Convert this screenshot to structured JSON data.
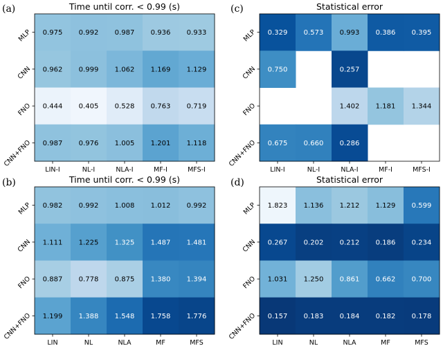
{
  "chart_data": [
    {
      "type": "heatmap",
      "letter": "(a)",
      "title": "Time until corr. < 0.99 (s)",
      "cmap": "Blues",
      "vmin": 0.35,
      "vmax": 1.9,
      "rows": [
        "MLP",
        "CNN",
        "FNO",
        "CNN+FNO"
      ],
      "columns": [
        "LIN-I",
        "NL-I",
        "NLA-I",
        "MF-I",
        "MFS-I"
      ],
      "values": [
        [
          0.975,
          0.992,
          0.987,
          0.936,
          0.933
        ],
        [
          0.962,
          0.999,
          1.062,
          1.169,
          1.129
        ],
        [
          0.444,
          0.405,
          0.528,
          0.763,
          0.719
        ],
        [
          0.987,
          0.976,
          1.005,
          1.201,
          1.118
        ]
      ]
    },
    {
      "type": "heatmap",
      "letter": "(c)",
      "title": "Statistical error",
      "cmap": "Blues",
      "vmin": 0.1,
      "vmax": 1.9,
      "rows": [
        "MLP",
        "CNN",
        "FNO",
        "CNN+FNO"
      ],
      "columns": [
        "LIN-I",
        "NL-I",
        "NLA-I",
        "MF-I",
        "MFS-I"
      ],
      "values": [
        [
          0.329,
          0.573,
          0.993,
          0.386,
          0.395
        ],
        [
          0.75,
          null,
          0.257,
          null,
          null
        ],
        [
          null,
          null,
          1.402,
          1.181,
          1.344
        ],
        [
          0.675,
          0.66,
          0.286,
          null,
          null
        ]
      ],
      "reverse": true
    },
    {
      "type": "heatmap",
      "letter": "(b)",
      "title": "Time until corr. < 0.99 (s)",
      "cmap": "Blues",
      "vmin": 0.35,
      "vmax": 1.9,
      "rows": [
        "MLP",
        "CNN",
        "FNO",
        "CNN+FNO"
      ],
      "columns": [
        "LIN",
        "NL",
        "NLA",
        "MF",
        "MFS"
      ],
      "values": [
        [
          0.982,
          0.992,
          1.008,
          1.012,
          0.992
        ],
        [
          1.111,
          1.225,
          1.325,
          1.487,
          1.481
        ],
        [
          0.887,
          0.778,
          0.875,
          1.38,
          1.394
        ],
        [
          1.199,
          1.388,
          1.548,
          1.758,
          1.776
        ]
      ]
    },
    {
      "type": "heatmap",
      "letter": "(d)",
      "title": "Statistical error",
      "cmap": "Blues",
      "vmin": 0.1,
      "vmax": 1.9,
      "rows": [
        "MLP",
        "CNN",
        "FNO",
        "CNN+FNO"
      ],
      "columns": [
        "LIN",
        "NL",
        "NLA",
        "MF",
        "MFS"
      ],
      "values": [
        [
          1.823,
          1.136,
          1.212,
          1.129,
          0.599
        ],
        [
          0.267,
          0.202,
          0.212,
          0.186,
          0.234
        ],
        [
          1.031,
          1.25,
          0.861,
          0.662,
          0.7
        ],
        [
          0.157,
          0.183,
          0.184,
          0.182,
          0.178
        ]
      ],
      "reverse": true
    }
  ]
}
